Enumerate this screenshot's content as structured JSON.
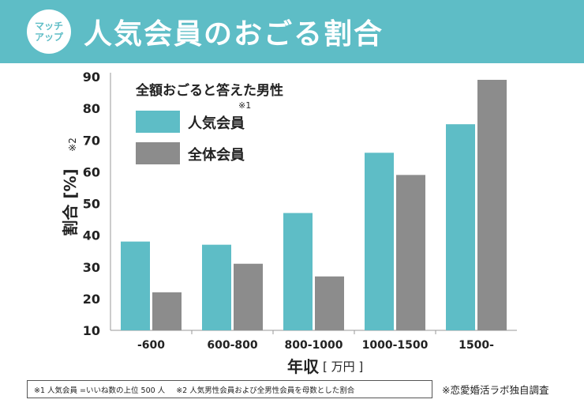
{
  "header": {
    "title": "人気会員のおごる割合",
    "logo_line1": "マッチ",
    "logo_line2": "アップ"
  },
  "colors": {
    "teal": "#5ebdc6",
    "gray": "#8c8c8c"
  },
  "chart_data": {
    "type": "bar",
    "legend_title": "全額おごると答えた男性",
    "legend_placement": "top-left",
    "categories": [
      "-600",
      "600-800",
      "800-1000",
      "1000-1500",
      "1500-"
    ],
    "series": [
      {
        "name": "人気会員",
        "note": "※1",
        "color": "#5ebdc6",
        "values": [
          38,
          37,
          47,
          66,
          75
        ]
      },
      {
        "name": "全体会員",
        "color": "#8c8c8c",
        "values": [
          22,
          31,
          27,
          59,
          89
        ]
      }
    ],
    "ylim": [
      10,
      90
    ],
    "yticks": [
      10,
      20,
      30,
      40,
      50,
      60,
      70,
      80,
      90
    ],
    "ylabel": "割合 [%]",
    "ylabel_note": "※2",
    "xlabel": "年収",
    "xlabel_unit": "[ 万円 ]",
    "grid": false
  },
  "footnotes": {
    "note1": "※1 人気会員 =いいね数の上位 500 人",
    "note2": "※2 人気男性会員および全男性会員を母数とした割合",
    "source": "※恋愛婚活ラボ独自調査"
  }
}
